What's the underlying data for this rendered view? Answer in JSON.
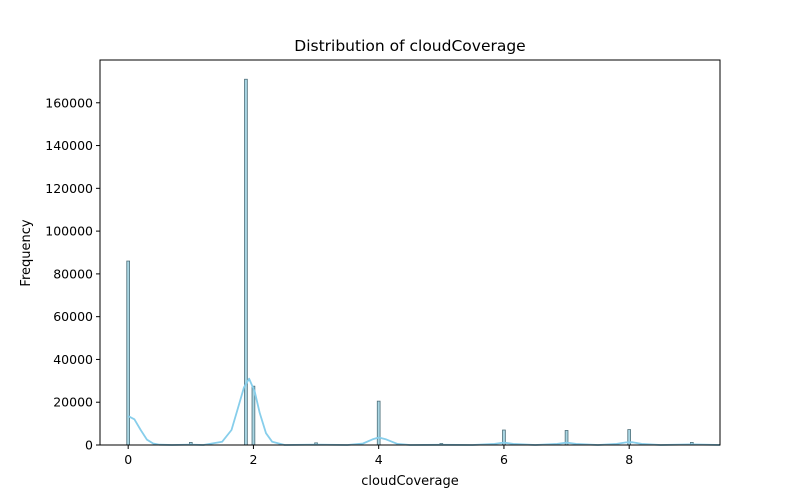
{
  "chart_data": {
    "type": "bar",
    "title": "Distribution of cloudCoverage",
    "xlabel": "cloudCoverage",
    "ylabel": "Frequency",
    "xlim": [
      -0.45,
      9.45
    ],
    "ylim": [
      0,
      180000
    ],
    "x_ticks": [
      0,
      2,
      4,
      6,
      8
    ],
    "y_ticks": [
      0,
      20000,
      40000,
      60000,
      80000,
      100000,
      120000,
      140000,
      160000
    ],
    "bin_width": 0.045,
    "bars": [
      {
        "x": 0.0,
        "count": 86000
      },
      {
        "x": 1.0,
        "count": 1200
      },
      {
        "x": 1.88,
        "count": 171000
      },
      {
        "x": 2.0,
        "count": 27500
      },
      {
        "x": 3.0,
        "count": 1000
      },
      {
        "x": 4.0,
        "count": 20500
      },
      {
        "x": 5.0,
        "count": 700
      },
      {
        "x": 6.0,
        "count": 7000
      },
      {
        "x": 7.0,
        "count": 6800
      },
      {
        "x": 8.0,
        "count": 7200
      },
      {
        "x": 9.0,
        "count": 1200
      }
    ],
    "kde": [
      [
        0.0,
        13500
      ],
      [
        0.1,
        12000
      ],
      [
        0.2,
        7000
      ],
      [
        0.3,
        2500
      ],
      [
        0.4,
        700
      ],
      [
        0.5,
        150
      ],
      [
        0.7,
        0
      ],
      [
        1.0,
        200
      ],
      [
        1.2,
        0
      ],
      [
        1.5,
        1500
      ],
      [
        1.65,
        7000
      ],
      [
        1.75,
        17000
      ],
      [
        1.85,
        27000
      ],
      [
        1.93,
        31000
      ],
      [
        2.02,
        25000
      ],
      [
        2.1,
        15000
      ],
      [
        2.2,
        5500
      ],
      [
        2.3,
        1500
      ],
      [
        2.5,
        0
      ],
      [
        3.0,
        200
      ],
      [
        3.5,
        0
      ],
      [
        3.75,
        700
      ],
      [
        3.9,
        2600
      ],
      [
        4.0,
        3500
      ],
      [
        4.12,
        2600
      ],
      [
        4.3,
        500
      ],
      [
        4.5,
        0
      ],
      [
        5.0,
        100
      ],
      [
        5.5,
        0
      ],
      [
        5.85,
        500
      ],
      [
        6.0,
        1100
      ],
      [
        6.15,
        500
      ],
      [
        6.5,
        0
      ],
      [
        6.85,
        500
      ],
      [
        7.0,
        1100
      ],
      [
        7.15,
        500
      ],
      [
        7.5,
        0
      ],
      [
        7.8,
        500
      ],
      [
        7.95,
        1200
      ],
      [
        8.05,
        1300
      ],
      [
        8.2,
        500
      ],
      [
        8.5,
        0
      ],
      [
        9.0,
        300
      ],
      [
        9.45,
        0
      ]
    ],
    "bar_fill": "#a9d6e3",
    "bar_stroke": "#4e6f7a",
    "kde_color": "#87ceeb",
    "grid": false,
    "legend": "none"
  }
}
